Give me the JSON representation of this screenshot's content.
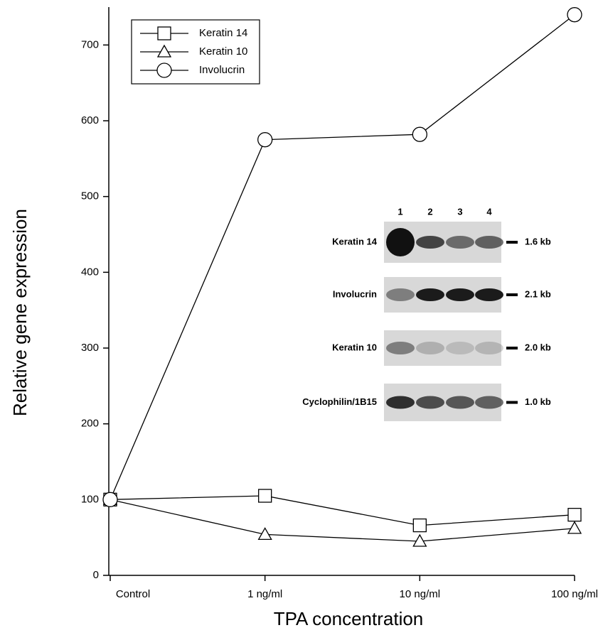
{
  "chart_data": {
    "type": "line",
    "xlabel": "TPA concentration",
    "ylabel": "Relative gene expression",
    "categories": [
      "Control",
      "1 ng/ml",
      "10 ng/ml",
      "100 ng/ml"
    ],
    "series": [
      {
        "name": "Keratin 14",
        "marker": "square",
        "color": "#000000",
        "values": [
          100,
          105,
          66,
          80
        ]
      },
      {
        "name": "Keratin 10",
        "marker": "triangle",
        "color": "#000000",
        "values": [
          100,
          54,
          45,
          62
        ]
      },
      {
        "name": "Involucrin",
        "marker": "circle",
        "color": "#000000",
        "values": [
          100,
          575,
          582,
          740
        ]
      }
    ],
    "ylim": [
      0,
      750
    ],
    "yticks": [
      0,
      100,
      200,
      300,
      400,
      500,
      600,
      700
    ],
    "legend": "upper left",
    "inset": {
      "lanes": [
        "1",
        "2",
        "3",
        "4"
      ],
      "rows": [
        {
          "label": "Keratin 14",
          "size": "1.6 kb"
        },
        {
          "label": "Involucrin",
          "size": "2.1 kb"
        },
        {
          "label": "Keratin 10",
          "size": "2.0 kb"
        },
        {
          "label": "Cyclophilin/1B15",
          "size": "1.0 kb"
        }
      ]
    }
  }
}
